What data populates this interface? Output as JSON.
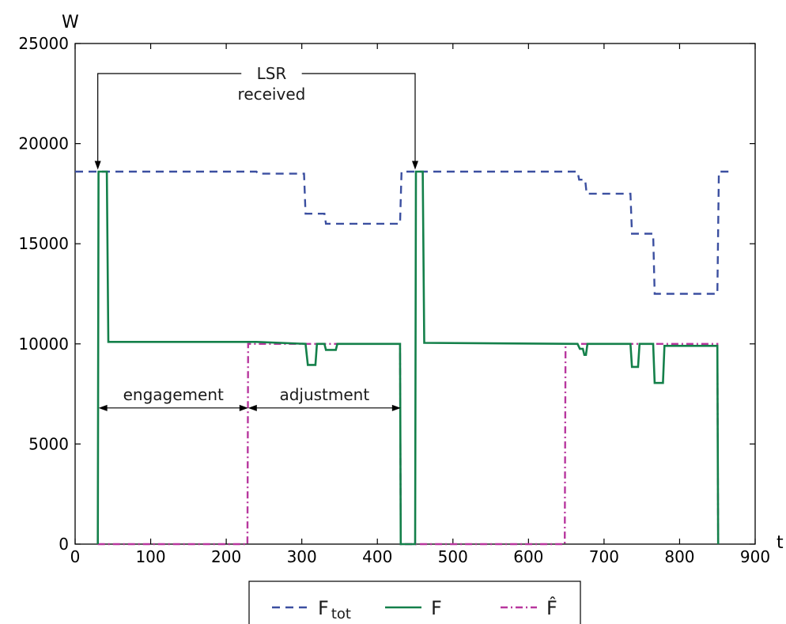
{
  "chart_data": {
    "type": "line",
    "xlabel": "t",
    "ylabel": "W",
    "xlim": [
      0,
      900
    ],
    "ylim": [
      0,
      25000
    ],
    "xticks": [
      0,
      100,
      200,
      300,
      400,
      500,
      600,
      700,
      800,
      900
    ],
    "yticks": [
      0,
      5000,
      10000,
      15000,
      20000,
      25000
    ],
    "grid": false,
    "legend_position": "bottom",
    "legend": [
      {
        "main": "F",
        "sub": "tot",
        "style": "dashed",
        "color": "#3b4fa0"
      },
      {
        "main": "F",
        "sub": "",
        "style": "solid",
        "color": "#14804a"
      },
      {
        "main": "F̂",
        "sub": "",
        "style": "dashdot",
        "color": "#b8379e"
      }
    ],
    "series": [
      {
        "key": "F_tot",
        "color": "#3b4fa0",
        "style": "dashed",
        "x": [
          0,
          240,
          242,
          303,
          305,
          330,
          332,
          430,
          432,
          665,
          667,
          675,
          677,
          735,
          737,
          765,
          767,
          850,
          852,
          870
        ],
        "y": [
          18600,
          18600,
          18500,
          18500,
          16500,
          16500,
          16000,
          16000,
          18600,
          18600,
          18200,
          18200,
          17500,
          17500,
          15500,
          15500,
          12500,
          12500,
          18600,
          18600
        ]
      },
      {
        "key": "F",
        "color": "#14804a",
        "style": "solid",
        "x": [
          30,
          31,
          42,
          44,
          240,
          305,
          308,
          318,
          320,
          330,
          332,
          345,
          347,
          430,
          431,
          450,
          451,
          460,
          462,
          665,
          668,
          672,
          674,
          676,
          678,
          735,
          737,
          745,
          747,
          765,
          767,
          778,
          780,
          850,
          851
        ],
        "y": [
          0,
          18600,
          18600,
          10100,
          10100,
          10000,
          8950,
          8950,
          10000,
          10000,
          9700,
          9700,
          10000,
          10000,
          0,
          0,
          18600,
          18600,
          10050,
          10000,
          9750,
          9750,
          9450,
          9450,
          10000,
          10000,
          8850,
          8850,
          10000,
          10000,
          8050,
          8050,
          9900,
          9900,
          0
        ]
      },
      {
        "key": "F_hat",
        "color": "#b8379e",
        "style": "dashdot",
        "x": [
          30,
          228,
          229,
          240,
          430,
          431,
          450,
          648,
          649,
          660,
          850,
          851
        ],
        "y": [
          0,
          0,
          10000,
          10000,
          10000,
          0,
          0,
          0,
          10000,
          10000,
          10000,
          0
        ]
      }
    ],
    "annotations": {
      "lsr_line1": "LSR",
      "lsr_line2": "received",
      "engagement": "engagement",
      "adjustment": "adjustment"
    }
  }
}
